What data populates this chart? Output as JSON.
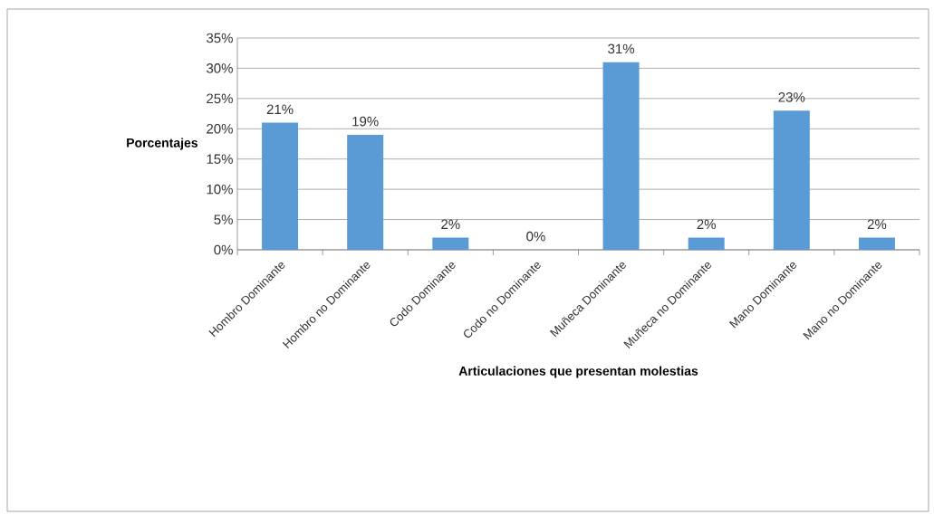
{
  "chart_data": {
    "type": "bar",
    "ylabel": "Porcentajes",
    "xlabel": "Articulaciones que presentan molestias",
    "categories": [
      "Hombro Dominante",
      "Hombro no Dominante",
      "Codo Dominante",
      "Codo no Dominante",
      "Muñeca Dominante",
      "Muñeca no Dominante",
      "Mano Dominante",
      "Mano no Dominante"
    ],
    "values": [
      21,
      19,
      2,
      0,
      31,
      2,
      23,
      2
    ],
    "value_labels": [
      "21%",
      "19%",
      "2%",
      "0%",
      "31%",
      "2%",
      "23%",
      "2%"
    ],
    "color": "#5b9bd5",
    "ylim": [
      0,
      35
    ],
    "yticks": [
      {
        "value": 0,
        "label": "0%"
      },
      {
        "value": 5,
        "label": "5%"
      },
      {
        "value": 10,
        "label": "10%"
      },
      {
        "value": 15,
        "label": "15%"
      },
      {
        "value": 20,
        "label": "20%"
      },
      {
        "value": 25,
        "label": "25%"
      },
      {
        "value": 30,
        "label": "30%"
      },
      {
        "value": 35,
        "label": "35%"
      }
    ],
    "grid": "y"
  }
}
